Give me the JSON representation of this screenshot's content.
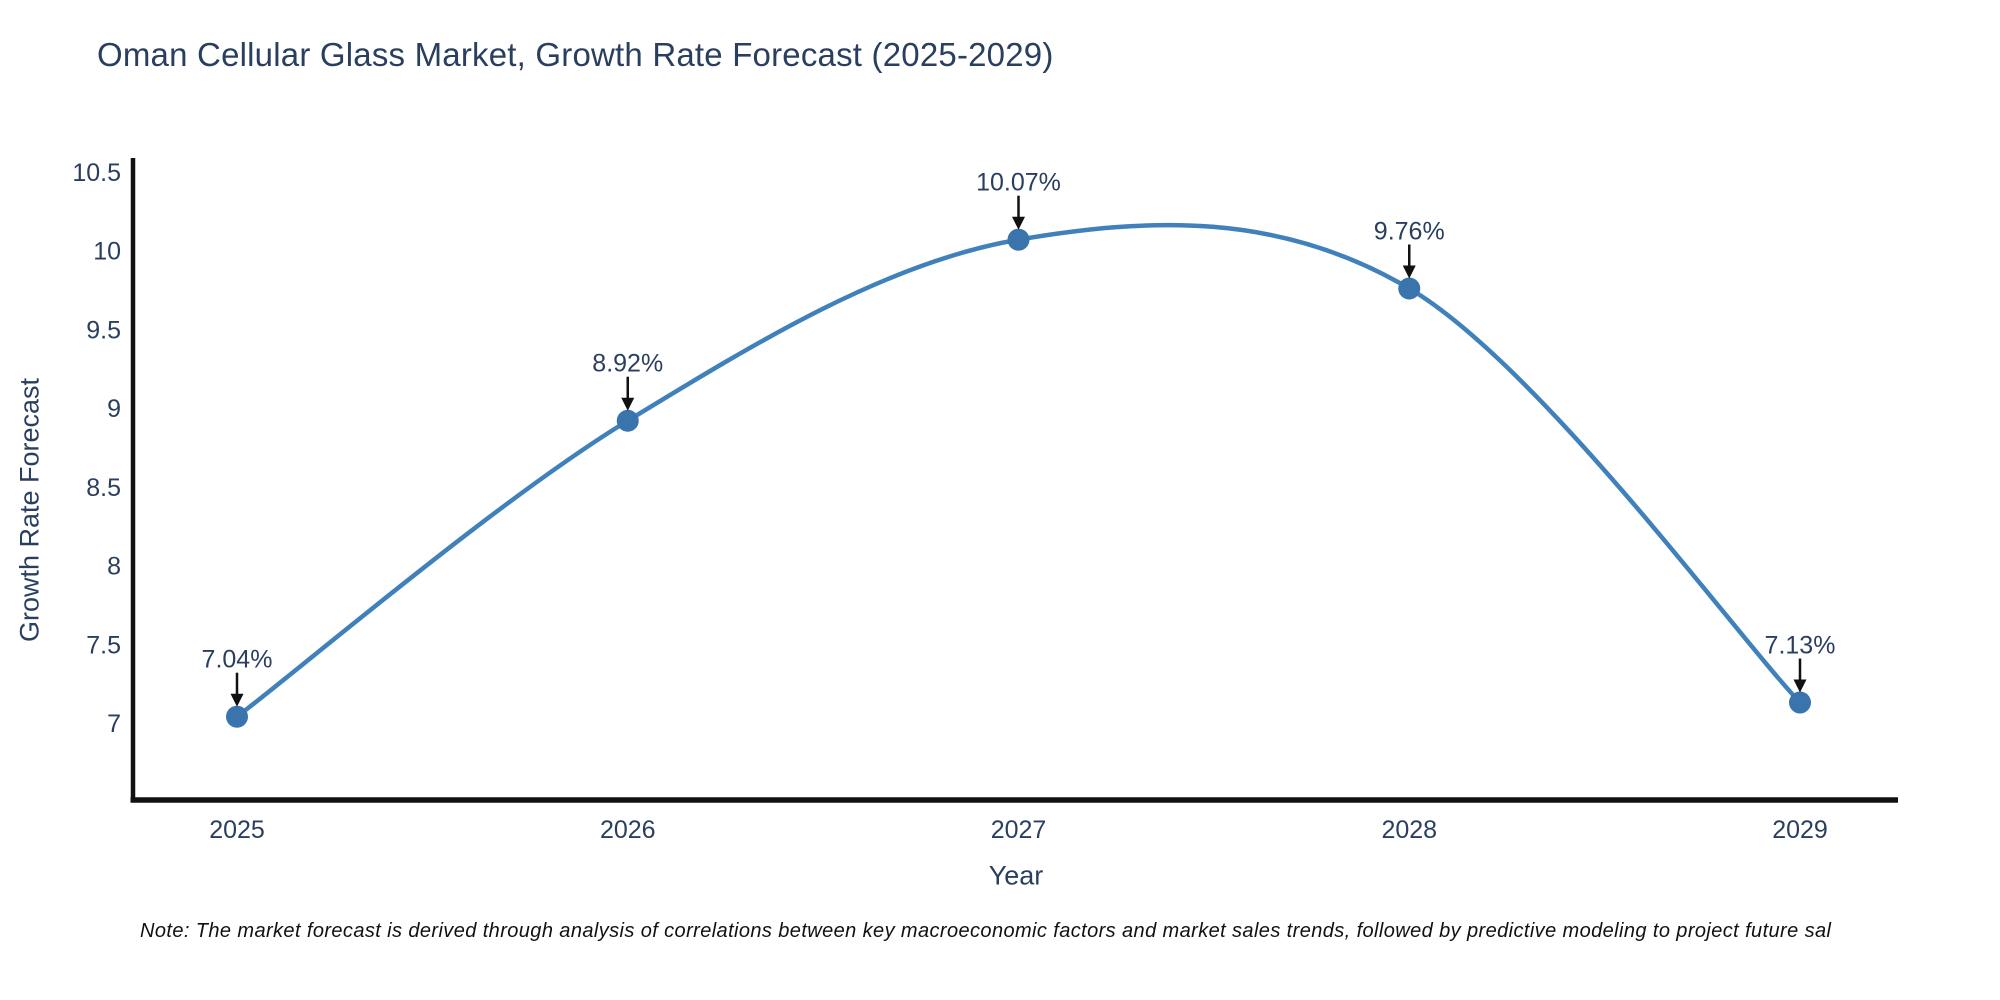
{
  "chart_data": {
    "type": "line",
    "line_shape": "spline",
    "title": "Oman Cellular Glass Market, Growth Rate Forecast (2025-2029)",
    "xlabel": "Year",
    "ylabel": "Growth Rate Forecast",
    "x": [
      2025,
      2026,
      2027,
      2028,
      2029
    ],
    "series": [
      {
        "name": "Growth Rate Forecast",
        "values": [
          7.04,
          8.92,
          10.07,
          9.76,
          7.13
        ]
      }
    ],
    "point_labels": [
      "7.04%",
      "8.92%",
      "10.07%",
      "9.76%",
      "7.13%"
    ],
    "y_ticks": [
      7,
      7.5,
      8,
      8.5,
      9,
      9.5,
      10,
      10.5
    ],
    "x_ticks": [
      "2025",
      "2026",
      "2027",
      "2028",
      "2029"
    ],
    "ylim": [
      6.51,
      10.61
    ],
    "grid": false,
    "legend": "none",
    "colors": {
      "line": "#4181bb",
      "marker": "#3a74ad",
      "axis": "#111111",
      "tick_label": "#2a3f5f",
      "annotation_text": "#2a3f5f",
      "annotation_arrow": "#111111",
      "title": "#2a3f5f",
      "background": "#ffffff"
    }
  },
  "note": {
    "text": "Note: The market forecast is derived through analysis of correlations between key macroeconomic factors and market sales trends, followed by predictive modeling to project future sal"
  }
}
